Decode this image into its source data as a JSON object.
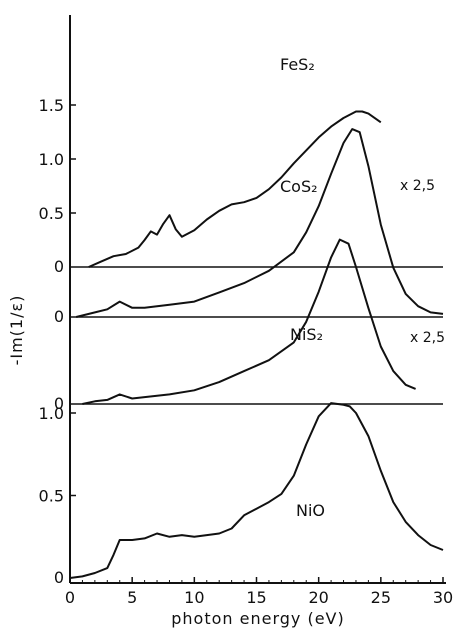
{
  "chart_data": {
    "type": "line",
    "xlabel": "photon energy (eV)",
    "ylabel": "-Im(1/ε)",
    "xlim": [
      0,
      30
    ],
    "x_ticks": [
      {
        "value": 0,
        "label": "0"
      },
      {
        "value": 5,
        "label": "5"
      },
      {
        "value": 10,
        "label": "10"
      },
      {
        "value": 15,
        "label": "15"
      },
      {
        "value": 20,
        "label": "20"
      },
      {
        "value": 25,
        "label": "25"
      },
      {
        "value": 30,
        "label": "30"
      }
    ],
    "stacked_offsets_note": "",
    "series": [
      {
        "name": "FeS₂",
        "scale_label": "",
        "baseline_label": "0",
        "y_ticks": [
          {
            "value": 0.5,
            "label": "0.5"
          },
          {
            "value": 1.0,
            "label": "1.0"
          },
          {
            "value": 1.5,
            "label": "1.5"
          }
        ],
        "ylim": [
          0,
          1.55
        ],
        "x": [
          1.5,
          2.5,
          3.5,
          4.5,
          5.5,
          6.0,
          6.5,
          7.0,
          7.5,
          8.0,
          8.5,
          9.0,
          10,
          11,
          12,
          13,
          14,
          15,
          16,
          17,
          18,
          19,
          20,
          21,
          22,
          23,
          23.5,
          24,
          25
        ],
        "y": [
          0.0,
          0.05,
          0.1,
          0.12,
          0.18,
          0.25,
          0.33,
          0.3,
          0.4,
          0.48,
          0.35,
          0.28,
          0.34,
          0.44,
          0.52,
          0.58,
          0.6,
          0.64,
          0.72,
          0.83,
          0.96,
          1.08,
          1.2,
          1.3,
          1.38,
          1.44,
          1.44,
          1.42,
          1.34
        ]
      },
      {
        "name": "CoS₂",
        "scale_label": "x 2,5",
        "baseline_label": "0",
        "x": [
          0.5,
          2,
          3,
          4,
          5,
          6,
          8,
          10,
          12,
          14,
          16,
          18,
          19,
          20,
          21,
          22,
          22.7,
          23.3,
          24,
          25,
          26,
          27,
          28,
          29,
          30
        ],
        "y": [
          0.0,
          0.03,
          0.05,
          0.1,
          0.06,
          0.06,
          0.08,
          0.1,
          0.16,
          0.22,
          0.3,
          0.42,
          0.55,
          0.72,
          0.93,
          1.13,
          1.22,
          1.2,
          0.98,
          0.6,
          0.32,
          0.15,
          0.07,
          0.03,
          0.02
        ]
      },
      {
        "name": "NiS₂",
        "scale_label": "x 2,5",
        "baseline_label": "0",
        "x": [
          1,
          2,
          3,
          4,
          5,
          6,
          8,
          10,
          12,
          14,
          16,
          18,
          19,
          20,
          21,
          21.7,
          22.4,
          23,
          24,
          25,
          26,
          27,
          27.8
        ],
        "y": [
          0.0,
          0.02,
          0.03,
          0.07,
          0.04,
          0.05,
          0.07,
          0.1,
          0.16,
          0.24,
          0.32,
          0.45,
          0.6,
          0.82,
          1.07,
          1.2,
          1.17,
          1.0,
          0.7,
          0.42,
          0.24,
          0.14,
          0.11
        ]
      },
      {
        "name": "NiO",
        "scale_label": "",
        "baseline_label": "0",
        "y_ticks": [
          {
            "value": 0.5,
            "label": "0.5"
          },
          {
            "value": 1.0,
            "label": "1.0"
          }
        ],
        "ylim": [
          0,
          1.05
        ],
        "x": [
          0,
          1,
          2,
          3,
          3.5,
          4,
          5,
          6,
          7,
          8,
          9,
          10,
          11,
          12,
          13,
          14,
          15,
          16,
          17,
          18,
          19,
          20,
          21,
          22,
          22.5,
          23,
          24,
          25,
          26,
          27,
          28,
          29,
          30
        ],
        "y": [
          0.0,
          0.01,
          0.03,
          0.06,
          0.14,
          0.23,
          0.23,
          0.24,
          0.27,
          0.25,
          0.26,
          0.25,
          0.26,
          0.27,
          0.3,
          0.38,
          0.42,
          0.46,
          0.51,
          0.62,
          0.81,
          0.98,
          1.06,
          1.05,
          1.04,
          1.0,
          0.86,
          0.65,
          0.46,
          0.34,
          0.26,
          0.2,
          0.17
        ]
      }
    ]
  }
}
